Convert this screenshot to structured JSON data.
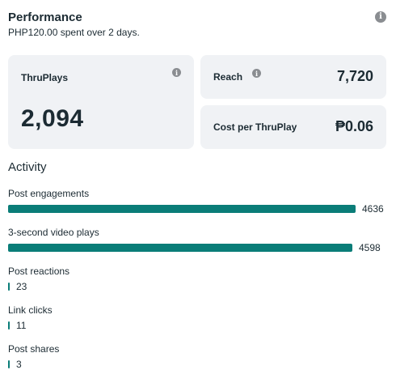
{
  "header": {
    "title": "Performance",
    "spent": "PHP120.00",
    "spent_suffix": " spent over ",
    "days": "2",
    "days_suffix": " days."
  },
  "cards": {
    "thruplays": {
      "label": "ThruPlays",
      "value": "2,094"
    },
    "reach": {
      "label": "Reach",
      "value": "7,720"
    },
    "cost": {
      "label": "Cost per ThruPlay",
      "value": "₱0.06"
    }
  },
  "activity": {
    "title": "Activity",
    "max_value": 4636,
    "bar_color": "#0a7d78",
    "metrics": [
      {
        "label": "Post engagements",
        "value": "4636",
        "amount": 4636
      },
      {
        "label": "3-second video plays",
        "value": "4598",
        "amount": 4598
      },
      {
        "label": "Post reactions",
        "value": "23",
        "amount": 23
      },
      {
        "label": "Link clicks",
        "value": "11",
        "amount": 11
      },
      {
        "label": "Post shares",
        "value": "3",
        "amount": 3
      }
    ]
  },
  "icons": {
    "info": "info-icon"
  }
}
